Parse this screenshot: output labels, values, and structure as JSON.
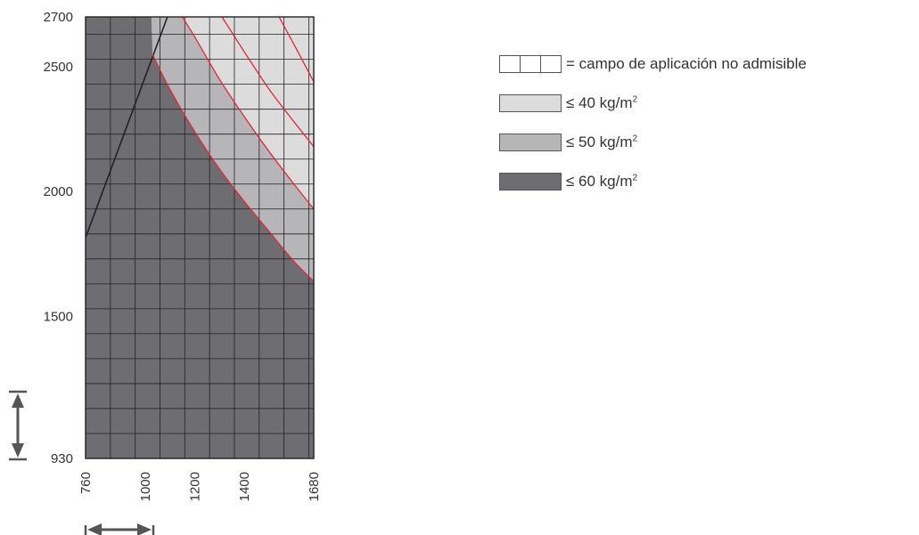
{
  "chart_data": {
    "type": "area",
    "title": "",
    "xlabel": "",
    "ylabel": "",
    "xlim": [
      760,
      1680
    ],
    "ylim": [
      930,
      2700
    ],
    "x_ticks": [
      "760",
      "1000",
      "1200",
      "1400",
      "1680"
    ],
    "y_ticks": [
      "930",
      "1500",
      "2000",
      "2500",
      "2700"
    ],
    "grid": true,
    "legend_position": "right",
    "not_admissible_boundary": {
      "x": [
        760,
        1090
      ],
      "y": [
        1815,
        2700
      ]
    },
    "weight_limit_curves": [
      {
        "name": "≤ 60 kg/m²",
        "x": [
          1030,
          1100,
          1200,
          1300,
          1400,
          1500,
          1600,
          1680
        ],
        "y": [
          2550,
          2410,
          2240,
          2090,
          1960,
          1840,
          1720,
          1640
        ]
      },
      {
        "name": "≤ 50 kg/m²",
        "x": [
          1150,
          1200,
          1300,
          1400,
          1500,
          1600,
          1680
        ],
        "y": [
          2700,
          2620,
          2450,
          2300,
          2160,
          2030,
          1930
        ]
      },
      {
        "name": "≤ 40 kg/m²",
        "x": [
          1310,
          1400,
          1500,
          1600,
          1680
        ],
        "y": [
          2700,
          2560,
          2410,
          2280,
          2180
        ]
      },
      {
        "name": "",
        "x": [
          1540,
          1600,
          1680
        ],
        "y": [
          2700,
          2590,
          2440
        ]
      }
    ],
    "colors": {
      "not_admissible": "#ffffff",
      "le_40": "#dcdcdc",
      "le_50": "#b6b6b9",
      "le_60": "#6e6e72",
      "curve": "#e8243c",
      "grid": "#222222"
    }
  },
  "legend": {
    "items": [
      {
        "kind": "grid",
        "text": "= campo de aplicación no admisible",
        "sup": "",
        "color": "#ffffff"
      },
      {
        "kind": "fill",
        "text": "≤ 40 kg/m",
        "sup": "2",
        "color": "#dcdcdc"
      },
      {
        "kind": "fill",
        "text": "≤ 50 kg/m",
        "sup": "2",
        "color": "#b6b6b9"
      },
      {
        "kind": "fill",
        "text": "≤ 60 kg/m",
        "sup": "2",
        "color": "#6e6e72"
      }
    ]
  }
}
